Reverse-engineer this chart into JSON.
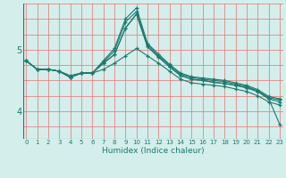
{
  "xlabel": "Humidex (Indice chaleur)",
  "bg_color": "#d4eeeb",
  "grid_color": "#e87070",
  "line_color": "#1a7a6e",
  "xticks": [
    0,
    1,
    2,
    3,
    4,
    5,
    6,
    7,
    8,
    9,
    10,
    11,
    12,
    13,
    14,
    15,
    16,
    17,
    18,
    19,
    20,
    21,
    22,
    23
  ],
  "yticks": [
    4,
    5
  ],
  "ylim": [
    3.55,
    5.75
  ],
  "xlim": [
    -0.3,
    23.3
  ],
  "series": [
    [
      4.82,
      4.68,
      4.68,
      4.65,
      4.55,
      4.62,
      4.62,
      4.78,
      4.92,
      5.35,
      5.58,
      5.05,
      4.88,
      4.72,
      4.58,
      4.52,
      4.5,
      4.47,
      4.45,
      4.42,
      4.38,
      4.32,
      4.2,
      4.15
    ],
    [
      4.82,
      4.68,
      4.68,
      4.65,
      4.55,
      4.62,
      4.62,
      4.8,
      4.98,
      5.45,
      5.62,
      5.08,
      4.9,
      4.75,
      4.6,
      4.55,
      4.52,
      4.5,
      4.48,
      4.44,
      4.4,
      4.33,
      4.22,
      4.18
    ],
    [
      4.82,
      4.68,
      4.68,
      4.65,
      4.55,
      4.62,
      4.62,
      4.82,
      5.02,
      5.5,
      5.68,
      5.1,
      4.93,
      4.76,
      4.62,
      4.56,
      4.54,
      4.52,
      4.5,
      4.46,
      4.42,
      4.35,
      4.24,
      4.2
    ],
    [
      4.82,
      4.68,
      4.68,
      4.65,
      4.55,
      4.62,
      4.62,
      4.78,
      4.92,
      5.35,
      5.58,
      5.05,
      4.88,
      4.72,
      4.58,
      4.52,
      4.5,
      4.47,
      4.45,
      4.42,
      4.38,
      4.32,
      4.2,
      3.78
    ],
    [
      4.82,
      4.68,
      4.68,
      4.65,
      4.58,
      4.62,
      4.62,
      4.68,
      4.78,
      4.9,
      5.02,
      4.9,
      4.78,
      4.65,
      4.52,
      4.46,
      4.44,
      4.42,
      4.4,
      4.36,
      4.32,
      4.25,
      4.15,
      4.1
    ]
  ]
}
